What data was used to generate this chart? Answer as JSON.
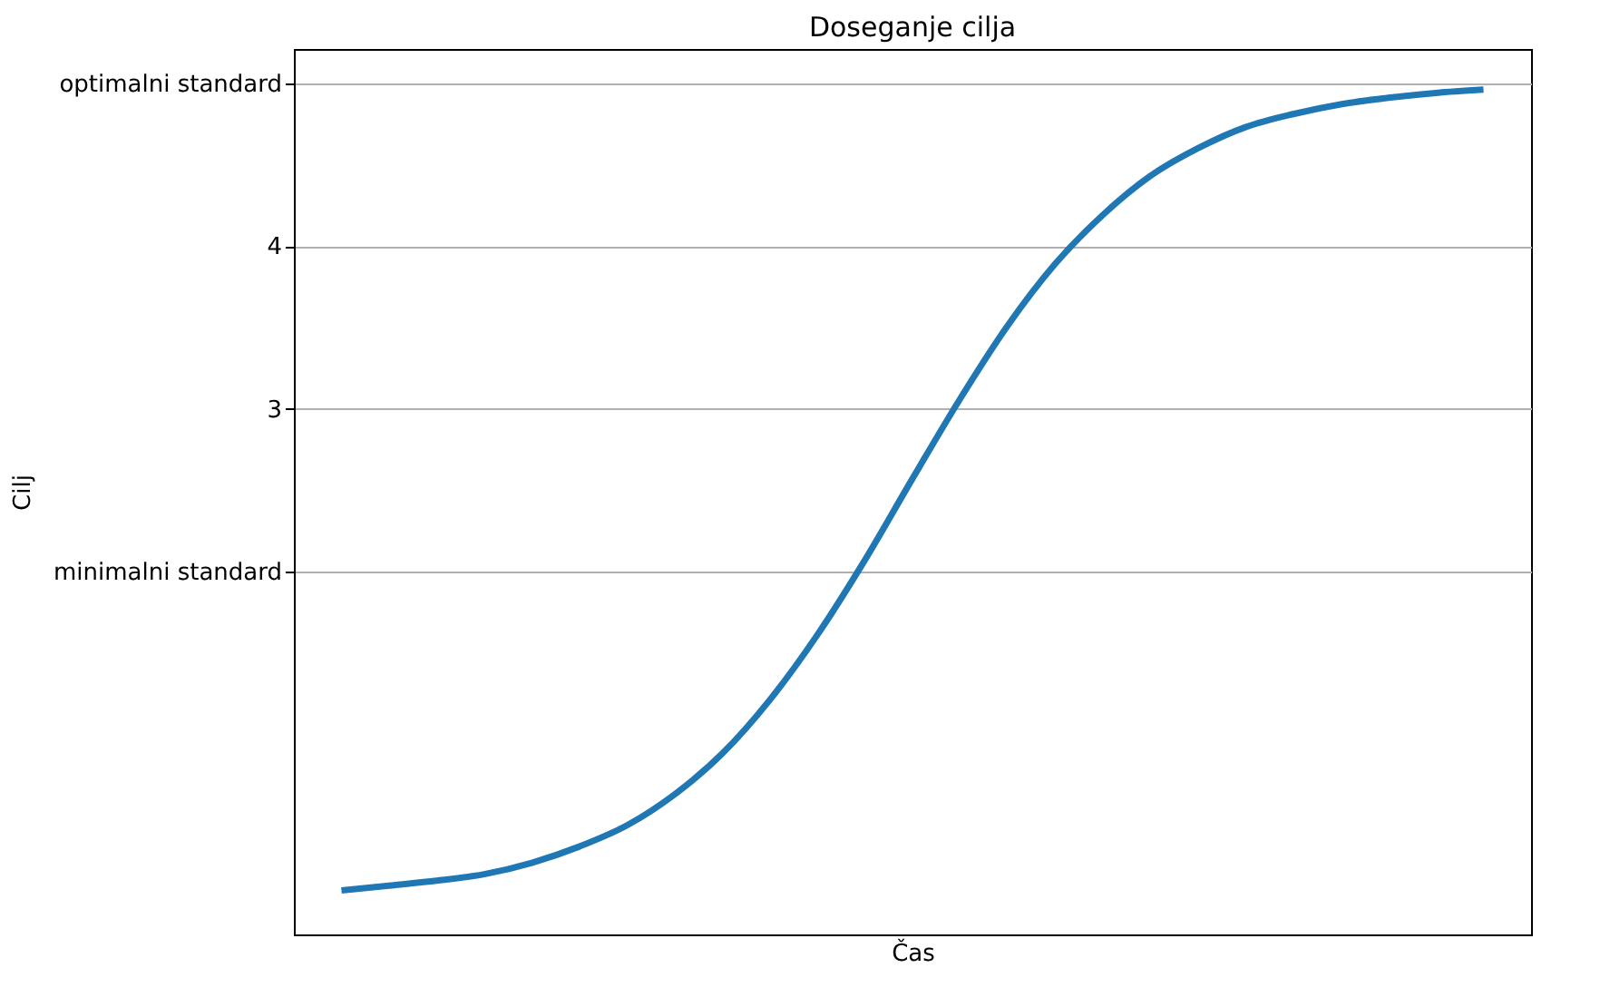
{
  "chart_data": {
    "type": "line",
    "title": "Doseganje cilja",
    "xlabel": "Čas",
    "ylabel": "Cilj",
    "categories": [
      null,
      null,
      null,
      null,
      null,
      null,
      null,
      null,
      null,
      null,
      null,
      null,
      null,
      null,
      null,
      null,
      null,
      null,
      null,
      null,
      null,
      null,
      null,
      null,
      null
    ],
    "series": [
      {
        "color": "#1f77b4",
        "values": [
          0.04,
          0.07,
          0.1,
          0.14,
          0.21,
          0.31,
          0.44,
          0.63,
          0.88,
          1.21,
          1.61,
          2.07,
          2.57,
          3.06,
          3.51,
          3.89,
          4.19,
          4.43,
          4.6,
          4.73,
          4.81,
          4.87,
          4.91,
          4.94,
          4.96
        ]
      }
    ],
    "ylim": [
      -0.23,
      5.21
    ],
    "yticks": [
      {
        "value": 2,
        "label": "minimalni standard"
      },
      3,
      4,
      {
        "value": 5,
        "label": "optimalni standard"
      }
    ],
    "grid": "y",
    "marker": "none",
    "line_style": "solid",
    "tick_labels": "y"
  }
}
